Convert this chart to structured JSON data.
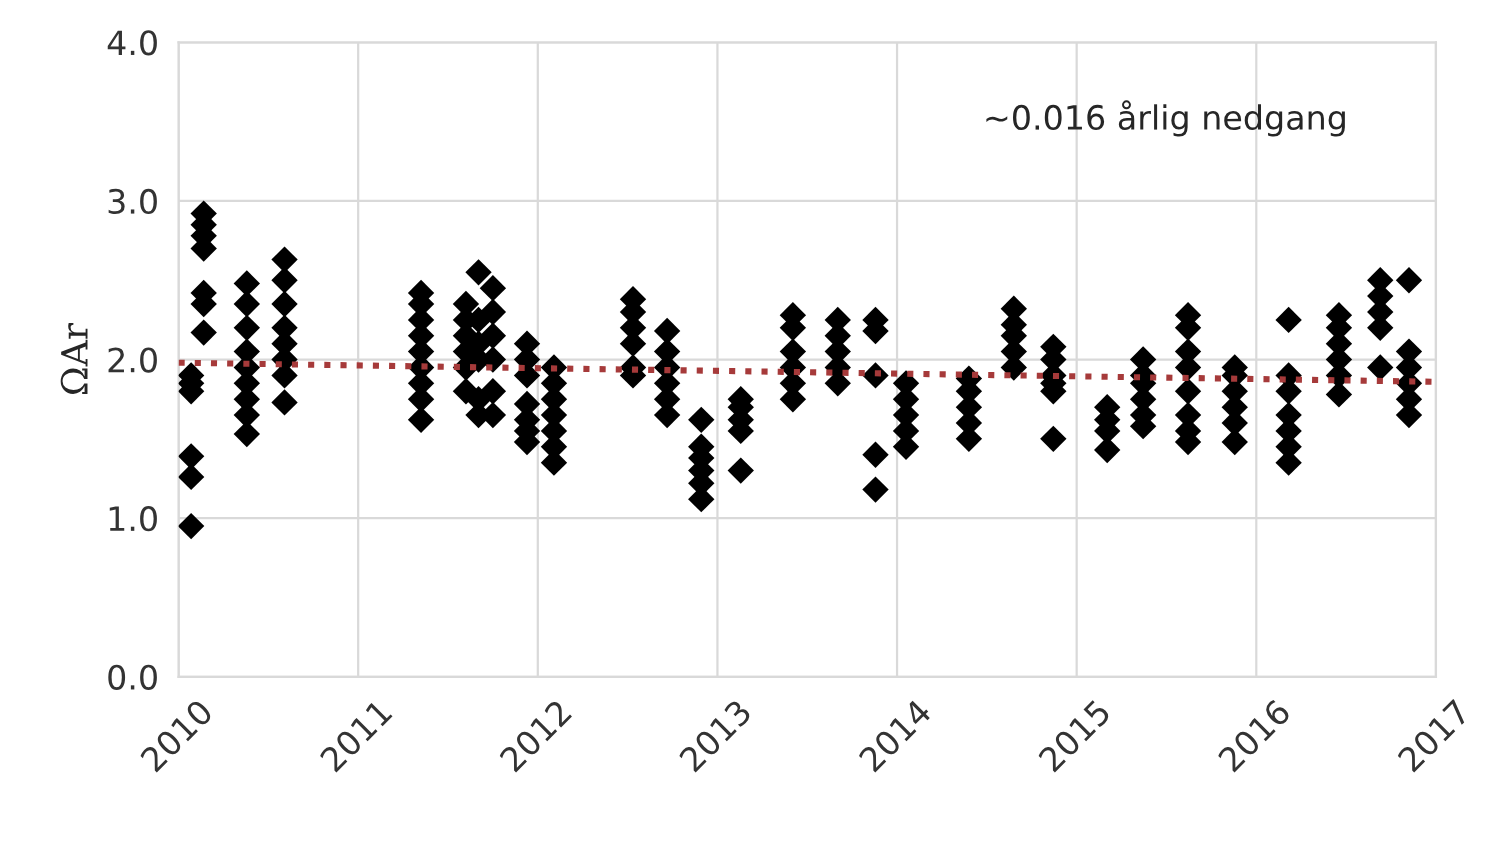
{
  "chart_data": {
    "type": "scatter",
    "ylabel": "ΩAr",
    "xlim": [
      2010,
      2017
    ],
    "ylim": [
      0,
      4
    ],
    "xticks": [
      2010,
      2011,
      2012,
      2013,
      2014,
      2015,
      2016,
      2017
    ],
    "yticks": [
      {
        "value": 0,
        "label": "0.0"
      },
      {
        "value": 1,
        "label": "1.0"
      },
      {
        "value": 2,
        "label": "2.0"
      },
      {
        "value": 3,
        "label": "3.0"
      },
      {
        "value": 4,
        "label": "4.0"
      }
    ],
    "grid": true,
    "legend": false,
    "marker": "diamond",
    "annotations": [
      "~0.016 årlig nedgang"
    ],
    "series": [
      {
        "color": "#000000",
        "x": [
          2010.07,
          2010.07,
          2010.07,
          2010.07,
          2010.07,
          2010.07,
          2010.14,
          2010.14,
          2010.14,
          2010.14,
          2010.14,
          2010.14,
          2010.14,
          2010.38,
          2010.38,
          2010.38,
          2010.38,
          2010.38,
          2010.38,
          2010.38,
          2010.38,
          2010.38,
          2010.59,
          2010.59,
          2010.59,
          2010.59,
          2010.59,
          2010.59,
          2010.59,
          2010.59,
          2011.35,
          2011.35,
          2011.35,
          2011.35,
          2011.35,
          2011.35,
          2011.35,
          2011.35,
          2011.35,
          2011.6,
          2011.6,
          2011.6,
          2011.6,
          2011.6,
          2011.6,
          2011.67,
          2011.67,
          2011.67,
          2011.67,
          2011.67,
          2011.67,
          2011.75,
          2011.75,
          2011.75,
          2011.75,
          2011.75,
          2011.75,
          2011.94,
          2011.94,
          2011.94,
          2011.94,
          2011.94,
          2011.94,
          2011.94,
          2012.09,
          2012.09,
          2012.09,
          2012.09,
          2012.09,
          2012.09,
          2012.09,
          2012.53,
          2012.53,
          2012.53,
          2012.53,
          2012.53,
          2012.53,
          2012.72,
          2012.72,
          2012.72,
          2012.72,
          2012.72,
          2012.72,
          2012.91,
          2012.91,
          2012.91,
          2012.91,
          2012.91,
          2012.91,
          2013.13,
          2013.13,
          2013.13,
          2013.13,
          2013.13,
          2013.42,
          2013.42,
          2013.42,
          2013.42,
          2013.42,
          2013.42,
          2013.67,
          2013.67,
          2013.67,
          2013.67,
          2013.67,
          2013.88,
          2013.88,
          2013.88,
          2013.88,
          2013.88,
          2014.05,
          2014.05,
          2014.05,
          2014.05,
          2014.05,
          2014.4,
          2014.4,
          2014.4,
          2014.4,
          2014.4,
          2014.65,
          2014.65,
          2014.65,
          2014.65,
          2014.65,
          2014.87,
          2014.87,
          2014.87,
          2014.87,
          2014.87,
          2014.87,
          2015.17,
          2015.17,
          2015.17,
          2015.17,
          2015.37,
          2015.37,
          2015.37,
          2015.37,
          2015.37,
          2015.37,
          2015.62,
          2015.62,
          2015.62,
          2015.62,
          2015.62,
          2015.62,
          2015.62,
          2015.62,
          2015.88,
          2015.88,
          2015.88,
          2015.88,
          2015.88,
          2015.88,
          2016.18,
          2016.18,
          2016.18,
          2016.18,
          2016.18,
          2016.18,
          2016.18,
          2016.46,
          2016.46,
          2016.46,
          2016.46,
          2016.46,
          2016.46,
          2016.69,
          2016.69,
          2016.69,
          2016.69,
          2016.69,
          2016.85,
          2016.85,
          2016.85,
          2016.85,
          2016.85,
          2016.85
        ],
        "values": [
          0.95,
          1.26,
          1.39,
          1.8,
          1.85,
          1.9,
          2.17,
          2.35,
          2.42,
          2.7,
          2.78,
          2.85,
          2.92,
          1.53,
          1.65,
          1.75,
          1.85,
          1.95,
          2.05,
          2.2,
          2.35,
          2.48,
          1.73,
          1.9,
          2.0,
          2.1,
          2.2,
          2.35,
          2.5,
          2.63,
          1.62,
          1.75,
          1.85,
          1.95,
          2.05,
          2.15,
          2.25,
          2.35,
          2.42,
          1.8,
          1.95,
          2.05,
          2.15,
          2.25,
          2.35,
          1.65,
          1.75,
          2.0,
          2.1,
          2.25,
          2.55,
          1.65,
          1.8,
          2.0,
          2.15,
          2.3,
          2.45,
          1.48,
          1.55,
          1.62,
          1.72,
          1.9,
          2.0,
          2.1,
          1.35,
          1.45,
          1.55,
          1.65,
          1.75,
          1.85,
          1.95,
          1.9,
          1.95,
          2.1,
          2.2,
          2.3,
          2.38,
          1.65,
          1.75,
          1.85,
          1.95,
          2.05,
          2.18,
          1.12,
          1.22,
          1.3,
          1.38,
          1.45,
          1.62,
          1.3,
          1.55,
          1.62,
          1.7,
          1.75,
          1.75,
          1.85,
          1.95,
          2.05,
          2.2,
          2.28,
          1.85,
          1.95,
          2.05,
          2.15,
          2.25,
          1.18,
          1.4,
          1.9,
          2.18,
          2.25,
          1.45,
          1.55,
          1.65,
          1.75,
          1.85,
          1.5,
          1.6,
          1.7,
          1.8,
          1.88,
          1.95,
          2.05,
          2.15,
          2.22,
          2.32,
          1.5,
          1.8,
          1.85,
          1.9,
          2.0,
          2.08,
          1.43,
          1.55,
          1.62,
          1.7,
          1.58,
          1.65,
          1.75,
          1.85,
          1.9,
          2.0,
          1.48,
          1.55,
          1.65,
          1.8,
          1.95,
          2.05,
          2.2,
          2.28,
          1.48,
          1.6,
          1.7,
          1.8,
          1.9,
          1.95,
          1.35,
          1.45,
          1.55,
          1.65,
          1.8,
          1.9,
          2.25,
          1.78,
          1.9,
          2.0,
          2.1,
          2.2,
          2.28,
          1.95,
          2.2,
          2.3,
          2.4,
          2.5,
          1.65,
          1.75,
          1.85,
          1.95,
          2.05,
          2.5
        ]
      },
      {
        "type": "line",
        "color": "#a63a3a",
        "line_style": "dotted",
        "marker": "none",
        "x": [
          2010,
          2017
        ],
        "values": [
          1.98,
          1.86
        ]
      }
    ]
  }
}
